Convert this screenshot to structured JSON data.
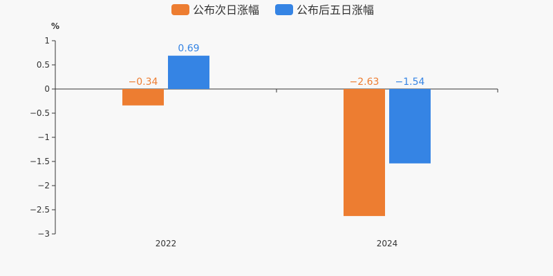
{
  "chart_data": {
    "type": "bar",
    "unit": "%",
    "categories": [
      "2022",
      "2024"
    ],
    "series": [
      {
        "name": "公布次日涨幅",
        "color": "#ed7d31",
        "values": [
          -0.34,
          -2.63
        ],
        "labels": [
          "−0.34",
          "−2.63"
        ]
      },
      {
        "name": "公布后五日涨幅",
        "color": "#3584e4",
        "values": [
          0.69,
          -1.54
        ],
        "labels": [
          "0.69",
          "−1.54"
        ]
      }
    ],
    "ylim": [
      -3,
      1
    ],
    "yticks": [
      {
        "value": 1,
        "label": "1"
      },
      {
        "value": 0.5,
        "label": "0.5"
      },
      {
        "value": 0,
        "label": "0"
      },
      {
        "value": -0.5,
        "label": "−0.5"
      },
      {
        "value": -1,
        "label": "−1"
      },
      {
        "value": -1.5,
        "label": "−1.5"
      },
      {
        "value": -2,
        "label": "−2"
      },
      {
        "value": -2.5,
        "label": "−2.5"
      },
      {
        "value": -3,
        "label": "−3"
      }
    ],
    "legend_position": "top-center",
    "grid": false
  }
}
